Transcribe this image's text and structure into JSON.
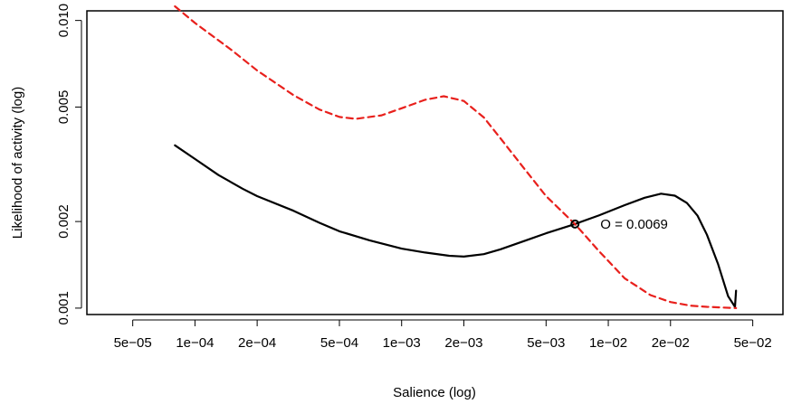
{
  "chart_data": {
    "type": "line",
    "title": "",
    "xlabel": "Salience (log)",
    "ylabel": "Likelihood of activity (log)",
    "x_scale": "log",
    "y_scale": "log",
    "xlim": [
      3e-05,
      0.07
    ],
    "ylim": [
      0.00095,
      0.0108
    ],
    "x_ticks": [
      {
        "value": 5e-05,
        "label": "5e−05"
      },
      {
        "value": 0.0001,
        "label": "1e−04"
      },
      {
        "value": 0.0002,
        "label": "2e−04"
      },
      {
        "value": 0.0005,
        "label": "5e−04"
      },
      {
        "value": 0.001,
        "label": "1e−03"
      },
      {
        "value": 0.002,
        "label": "2e−03"
      },
      {
        "value": 0.005,
        "label": "5e−03"
      },
      {
        "value": 0.01,
        "label": "1e−02"
      },
      {
        "value": 0.02,
        "label": "2e−02"
      },
      {
        "value": 0.05,
        "label": "5e−02"
      }
    ],
    "y_ticks": [
      {
        "value": 0.001,
        "label": "0.001"
      },
      {
        "value": 0.002,
        "label": "0.002"
      },
      {
        "value": 0.005,
        "label": "0.005"
      },
      {
        "value": 0.01,
        "label": "0.010"
      }
    ],
    "grid": false,
    "legend": "none",
    "series": [
      {
        "color": "#000000",
        "dash": "solid",
        "points": [
          [
            8e-05,
            0.00368
          ],
          [
            0.0001,
            0.0033
          ],
          [
            0.00013,
            0.0029
          ],
          [
            0.00017,
            0.0026
          ],
          [
            0.0002,
            0.00245
          ],
          [
            0.0003,
            0.00218
          ],
          [
            0.0004,
            0.00198
          ],
          [
            0.0005,
            0.00185
          ],
          [
            0.0007,
            0.00172
          ],
          [
            0.001,
            0.00161
          ],
          [
            0.0013,
            0.00156
          ],
          [
            0.0017,
            0.00152
          ],
          [
            0.002,
            0.00151
          ],
          [
            0.0025,
            0.00154
          ],
          [
            0.003,
            0.0016
          ],
          [
            0.004,
            0.00172
          ],
          [
            0.005,
            0.00182
          ],
          [
            0.0069,
            0.00196
          ],
          [
            0.009,
            0.0021
          ],
          [
            0.012,
            0.00228
          ],
          [
            0.015,
            0.00242
          ],
          [
            0.018,
            0.0025
          ],
          [
            0.021,
            0.00246
          ],
          [
            0.024,
            0.00232
          ],
          [
            0.027,
            0.0021
          ],
          [
            0.03,
            0.0018
          ],
          [
            0.034,
            0.00142
          ],
          [
            0.038,
            0.0011
          ],
          [
            0.041,
            0.00101
          ],
          [
            0.0415,
            0.00115
          ]
        ]
      },
      {
        "color": "#e8201c",
        "dash": "dashed",
        "points": [
          [
            8e-05,
            0.0112
          ],
          [
            0.0001,
            0.0098
          ],
          [
            0.00015,
            0.0079
          ],
          [
            0.0002,
            0.0067
          ],
          [
            0.0003,
            0.0055
          ],
          [
            0.0004,
            0.0049
          ],
          [
            0.0005,
            0.00462
          ],
          [
            0.0006,
            0.00455
          ],
          [
            0.0008,
            0.00468
          ],
          [
            0.001,
            0.00495
          ],
          [
            0.0013,
            0.0053
          ],
          [
            0.0016,
            0.00545
          ],
          [
            0.002,
            0.00525
          ],
          [
            0.0025,
            0.0046
          ],
          [
            0.003,
            0.0039
          ],
          [
            0.004,
            0.003
          ],
          [
            0.005,
            0.00245
          ],
          [
            0.0069,
            0.00196
          ],
          [
            0.009,
            0.00158
          ],
          [
            0.012,
            0.00127
          ],
          [
            0.016,
            0.00111
          ],
          [
            0.02,
            0.00105
          ],
          [
            0.025,
            0.00102
          ],
          [
            0.03,
            0.00101
          ],
          [
            0.0415,
            0.001
          ]
        ]
      }
    ],
    "annotation": {
      "x": 0.0069,
      "y": 0.00196,
      "text": "O = 0.0069"
    }
  }
}
